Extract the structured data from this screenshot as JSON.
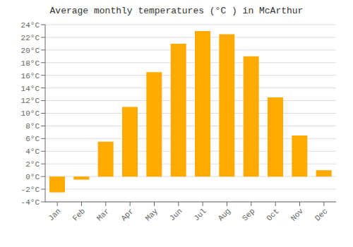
{
  "chart_data": {
    "type": "bar",
    "title": "Average monthly temperatures (°C ) in McArthur",
    "categories": [
      "Jan",
      "Feb",
      "Mar",
      "Apr",
      "May",
      "Jun",
      "Jul",
      "Aug",
      "Sep",
      "Oct",
      "Nov",
      "Dec"
    ],
    "values": [
      -2.5,
      -0.5,
      5.5,
      11.0,
      16.5,
      21.0,
      23.0,
      22.5,
      19.0,
      12.5,
      6.5,
      1.0
    ],
    "color": "#FFAA00",
    "ylim": [
      -4,
      24
    ],
    "yticks": [
      {
        "value": -4,
        "label": "-4°C"
      },
      {
        "value": -2,
        "label": "-2°C"
      },
      {
        "value": 0,
        "label": "0°C"
      },
      {
        "value": 2,
        "label": "2°C"
      },
      {
        "value": 4,
        "label": "4°C"
      },
      {
        "value": 6,
        "label": "6°C"
      },
      {
        "value": 8,
        "label": "8°C"
      },
      {
        "value": 10,
        "label": "10°C"
      },
      {
        "value": 12,
        "label": "12°C"
      },
      {
        "value": 14,
        "label": "14°C"
      },
      {
        "value": 16,
        "label": "16°C"
      },
      {
        "value": 18,
        "label": "18°C"
      },
      {
        "value": 20,
        "label": "20°C"
      },
      {
        "value": 22,
        "label": "22°C"
      },
      {
        "value": 24,
        "label": "24°C"
      }
    ],
    "grid": true
  }
}
